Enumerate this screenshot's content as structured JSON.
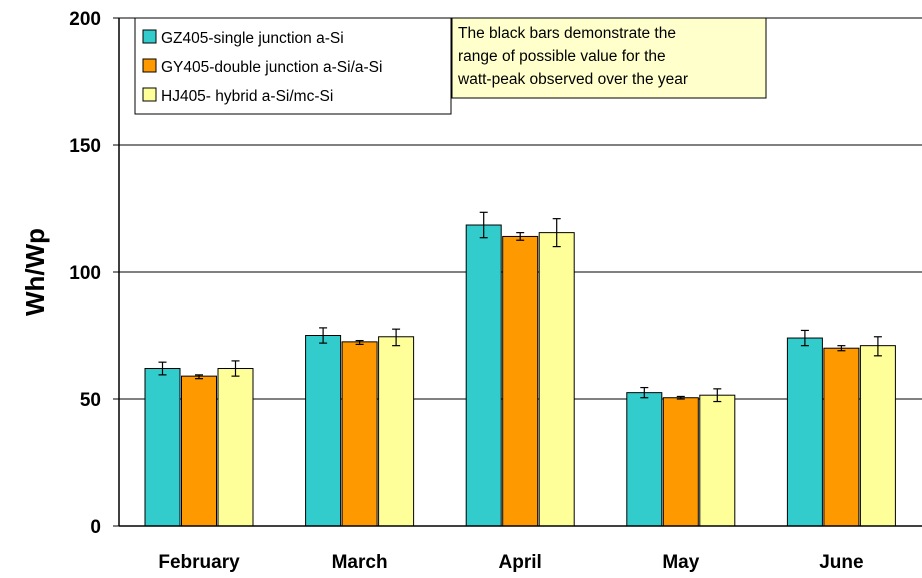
{
  "chart_data": {
    "type": "bar",
    "title": "",
    "xlabel": "",
    "ylabel": "Wh/Wp",
    "ylim": [
      0,
      200
    ],
    "yticks": [
      0,
      50,
      100,
      150,
      200
    ],
    "grid": true,
    "legend_position": "top-left",
    "categories": [
      "February",
      "March",
      "April",
      "May",
      "June"
    ],
    "series": [
      {
        "name": "GZ405-single junction a-Si",
        "color": "#33CCCC",
        "values": [
          62,
          75,
          118.5,
          52.5,
          74
        ],
        "err_low": [
          59.5,
          72,
          113.5,
          50.5,
          71
        ],
        "err_high": [
          64.5,
          78,
          123.5,
          54.5,
          77
        ]
      },
      {
        "name": "GY405-double junction a-Si/a-Si",
        "color": "#FF9900",
        "values": [
          59,
          72.5,
          114,
          50.5,
          70
        ],
        "err_low": [
          58,
          71.5,
          112.5,
          50,
          69
        ],
        "err_high": [
          59.5,
          73,
          115.5,
          51,
          71
        ]
      },
      {
        "name": "HJ405- hybrid a-Si/mc-Si",
        "color": "#FFFF99",
        "values": [
          62,
          74.5,
          115.5,
          51.5,
          71
        ],
        "err_low": [
          59,
          71,
          110,
          49,
          67
        ],
        "err_high": [
          65,
          77.5,
          121,
          54,
          74.5
        ]
      }
    ],
    "error_bar_color": "#000000",
    "annotation": [
      "The black bars demonstrate the",
      "range of  possible  value for the",
      "watt-peak observed over the year"
    ],
    "annotation_fill": "#FFFFCC"
  }
}
